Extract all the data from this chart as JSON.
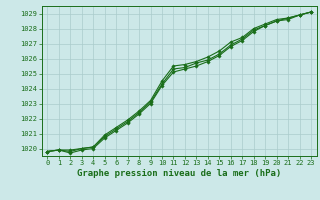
{
  "x": [
    0,
    1,
    2,
    3,
    4,
    5,
    6,
    7,
    8,
    9,
    10,
    11,
    12,
    13,
    14,
    15,
    16,
    17,
    18,
    19,
    20,
    21,
    22,
    23
  ],
  "line1": [
    1019.8,
    1019.9,
    1019.9,
    1020.0,
    1020.1,
    1020.9,
    1021.4,
    1021.9,
    1022.5,
    1023.2,
    1024.5,
    1025.5,
    1025.6,
    1025.8,
    1026.1,
    1026.5,
    1027.1,
    1027.4,
    1028.0,
    1028.3,
    1028.6,
    1028.7,
    1028.9,
    1029.1
  ],
  "line2": [
    1019.8,
    1019.9,
    1019.7,
    1019.9,
    1020.0,
    1020.7,
    1021.2,
    1021.7,
    1022.3,
    1023.0,
    1024.2,
    1025.1,
    1025.3,
    1025.5,
    1025.8,
    1026.2,
    1026.8,
    1027.2,
    1027.8,
    1028.2,
    1028.5,
    1028.6,
    1028.9,
    1029.1
  ],
  "line3": [
    1019.8,
    1019.9,
    1019.8,
    1020.0,
    1020.1,
    1020.8,
    1021.3,
    1021.8,
    1022.4,
    1023.1,
    1024.3,
    1025.3,
    1025.4,
    1025.7,
    1025.9,
    1026.3,
    1026.9,
    1027.3,
    1027.9,
    1028.2,
    1028.5,
    1028.7,
    1028.9,
    1029.1
  ],
  "ylim": [
    1019.5,
    1029.5
  ],
  "yticks": [
    1020,
    1021,
    1022,
    1023,
    1024,
    1025,
    1026,
    1027,
    1028,
    1029
  ],
  "xlim": [
    -0.5,
    23.5
  ],
  "xticks": [
    0,
    1,
    2,
    3,
    4,
    5,
    6,
    7,
    8,
    9,
    10,
    11,
    12,
    13,
    14,
    15,
    16,
    17,
    18,
    19,
    20,
    21,
    22,
    23
  ],
  "xlabel": "Graphe pression niveau de la mer (hPa)",
  "line_color": "#1a6e1a",
  "bg_color": "#cce8e8",
  "grid_color": "#aacccc",
  "marker": "D",
  "marker_size": 1.8,
  "linewidth": 0.8,
  "xlabel_fontsize": 6.5,
  "tick_fontsize": 5.0
}
